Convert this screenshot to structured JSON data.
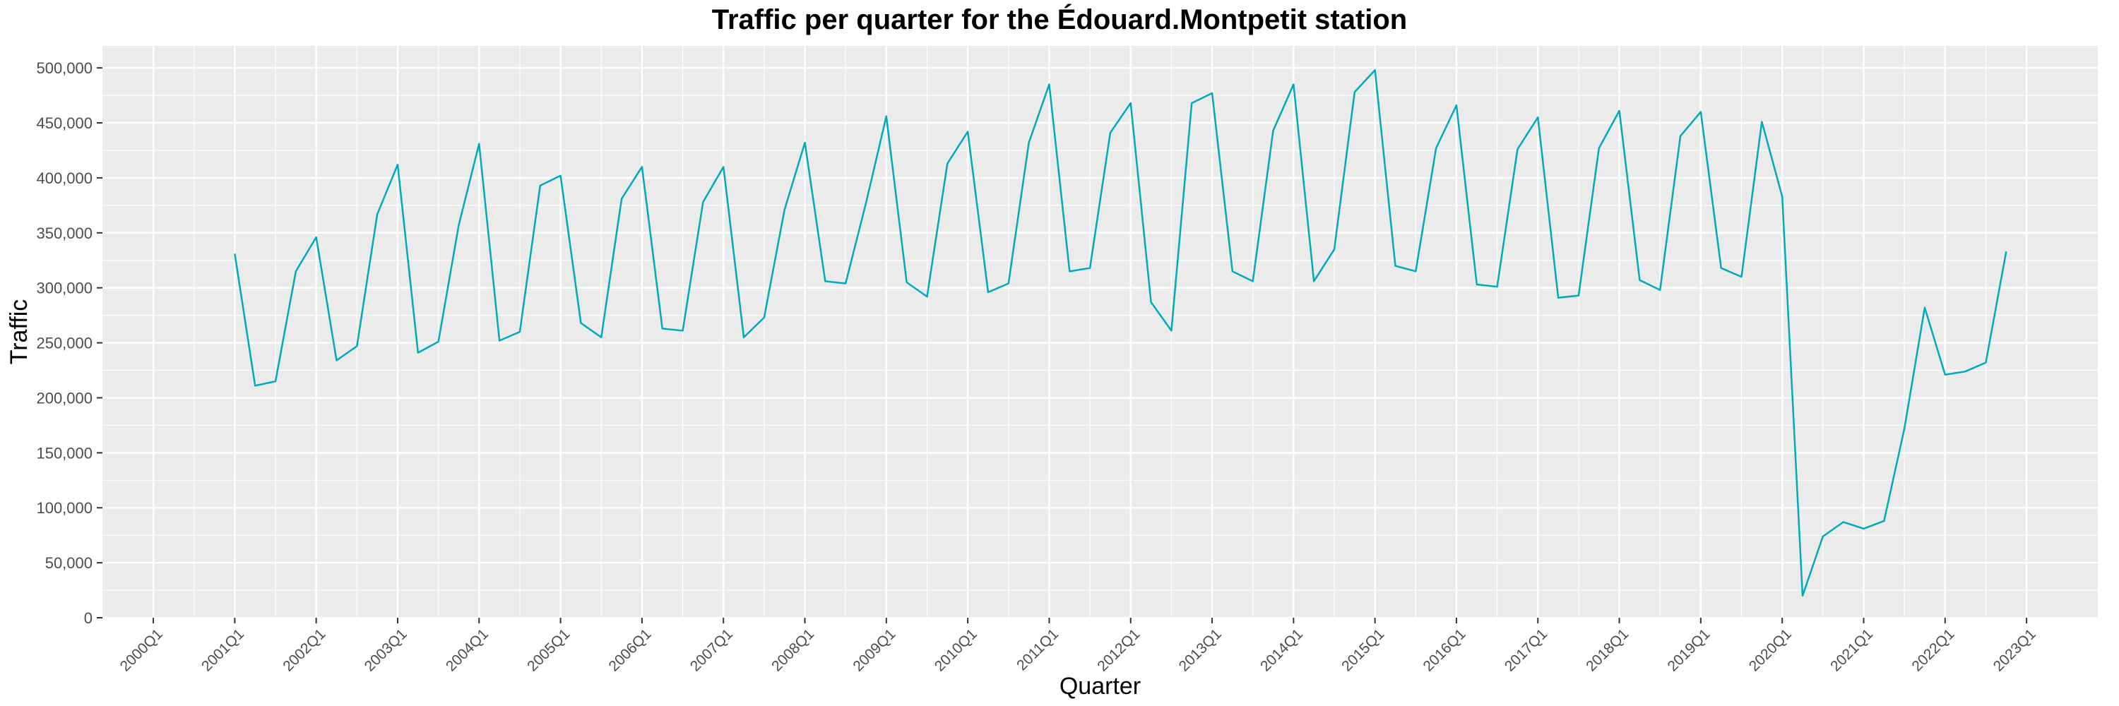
{
  "chart_data": {
    "type": "line",
    "title": "Traffic per quarter for the Édouard.Montpetit station",
    "xlabel": "Quarter",
    "ylabel": "Traffic",
    "ylim": [
      0,
      520000
    ],
    "y_ticks": [
      {
        "value": 0,
        "label": "0"
      },
      {
        "value": 50000,
        "label": "50,000"
      },
      {
        "value": 100000,
        "label": "100,000"
      },
      {
        "value": 150000,
        "label": "150,000"
      },
      {
        "value": 200000,
        "label": "200,000"
      },
      {
        "value": 250000,
        "label": "250,000"
      },
      {
        "value": 300000,
        "label": "300,000"
      },
      {
        "value": 350000,
        "label": "350,000"
      },
      {
        "value": 400000,
        "label": "400,000"
      },
      {
        "value": 450000,
        "label": "450,000"
      },
      {
        "value": 500000,
        "label": "500,000"
      }
    ],
    "x_ticks": [
      "2000Q1",
      "2001Q1",
      "2002Q1",
      "2003Q1",
      "2004Q1",
      "2005Q1",
      "2006Q1",
      "2007Q1",
      "2008Q1",
      "2009Q1",
      "2010Q1",
      "2011Q1",
      "2012Q1",
      "2013Q1",
      "2014Q1",
      "2015Q1",
      "2016Q1",
      "2017Q1",
      "2018Q1",
      "2019Q1",
      "2020Q1",
      "2021Q1",
      "2022Q1",
      "2023Q1"
    ],
    "grid": true,
    "line_color": "#00aabb",
    "background_color": "#ebebeb",
    "series": [
      {
        "x": [
          "2001Q1",
          "2001Q2",
          "2001Q3",
          "2001Q4",
          "2002Q1",
          "2002Q2",
          "2002Q3",
          "2002Q4",
          "2003Q1",
          "2003Q2",
          "2003Q3",
          "2003Q4",
          "2004Q1",
          "2004Q2",
          "2004Q3",
          "2004Q4",
          "2005Q1",
          "2005Q2",
          "2005Q3",
          "2005Q4",
          "2006Q1",
          "2006Q2",
          "2006Q3",
          "2006Q4",
          "2007Q1",
          "2007Q2",
          "2007Q3",
          "2007Q4",
          "2008Q1",
          "2008Q2",
          "2008Q3",
          "2008Q4",
          "2009Q1",
          "2009Q2",
          "2009Q3",
          "2009Q4",
          "2010Q1",
          "2010Q2",
          "2010Q3",
          "2010Q4",
          "2011Q1",
          "2011Q2",
          "2011Q3",
          "2011Q4",
          "2012Q1",
          "2012Q2",
          "2012Q3",
          "2012Q4",
          "2013Q1",
          "2013Q2",
          "2013Q3",
          "2013Q4",
          "2014Q1",
          "2014Q2",
          "2014Q3",
          "2014Q4",
          "2015Q1",
          "2015Q2",
          "2015Q3",
          "2015Q4",
          "2016Q1",
          "2016Q2",
          "2016Q3",
          "2016Q4",
          "2017Q1",
          "2017Q2",
          "2017Q3",
          "2017Q4",
          "2018Q1",
          "2018Q2",
          "2018Q3",
          "2018Q4",
          "2019Q1",
          "2019Q2",
          "2019Q3",
          "2019Q4",
          "2020Q1",
          "2020Q2",
          "2020Q3",
          "2020Q4",
          "2021Q1",
          "2021Q2",
          "2021Q3",
          "2021Q4",
          "2022Q1",
          "2022Q2",
          "2022Q3",
          "2022Q4"
        ],
        "values": [
          331000,
          211000,
          215000,
          315000,
          346000,
          234000,
          247000,
          367000,
          412000,
          241000,
          251000,
          357000,
          431000,
          252000,
          260000,
          393000,
          402000,
          268000,
          255000,
          381000,
          410000,
          263000,
          261000,
          378000,
          410000,
          255000,
          273000,
          371000,
          432000,
          306000,
          304000,
          377000,
          456000,
          305000,
          292000,
          413000,
          442000,
          296000,
          304000,
          432000,
          485000,
          315000,
          318000,
          441000,
          468000,
          287000,
          261000,
          468000,
          477000,
          315000,
          306000,
          443000,
          485000,
          306000,
          335000,
          478000,
          498000,
          320000,
          315000,
          427000,
          466000,
          303000,
          301000,
          426000,
          455000,
          291000,
          293000,
          427000,
          461000,
          307000,
          298000,
          438000,
          460000,
          318000,
          310000,
          451000,
          383000,
          20000,
          74000,
          87000,
          81000,
          88000,
          172000,
          282000,
          221000,
          224000,
          232000,
          333000
        ]
      }
    ]
  }
}
